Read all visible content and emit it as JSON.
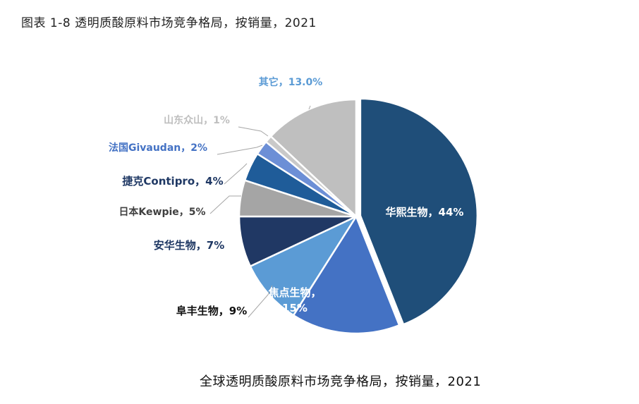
{
  "figure_title": "图表 1-8 透明质酸原料市场竞争格局，按销量，2021",
  "caption": "全球透明质酸原料市场竞争格局，按销量，2021",
  "chart_data": {
    "type": "pie",
    "title": "",
    "unit": "%",
    "slices": [
      {
        "label": "华熙生物，44%",
        "value": 44,
        "color": "#1F4E79",
        "label_color": "#ffffff"
      },
      {
        "label": "焦点生物，15%",
        "value": 15,
        "color": "#4472C4",
        "label_color": "#ffffff"
      },
      {
        "label": "阜丰生物，9%",
        "value": 9,
        "color": "#5B9BD5",
        "label_color": "#111111"
      },
      {
        "label": "安华生物，7%",
        "value": 7,
        "color": "#203864",
        "label_color": "#1F3864"
      },
      {
        "label": "日本Kewpie，5%",
        "value": 5,
        "color": "#A5A5A5",
        "label_color": "#404040"
      },
      {
        "label": "捷克Contipro，4%",
        "value": 4,
        "color": "#1F5C99",
        "label_color": "#1F3864"
      },
      {
        "label": "法国Givaudan，2%",
        "value": 2,
        "color": "#6C8FD6",
        "label_color": "#4472C4"
      },
      {
        "label": "山东众山，1%",
        "value": 1,
        "color": "#C9C9C9",
        "label_color": "#BFBFBF"
      },
      {
        "label": "其它，13.0%",
        "value": 13,
        "color": "#BFBFBF",
        "label_color": "#5B9BD5"
      }
    ]
  }
}
